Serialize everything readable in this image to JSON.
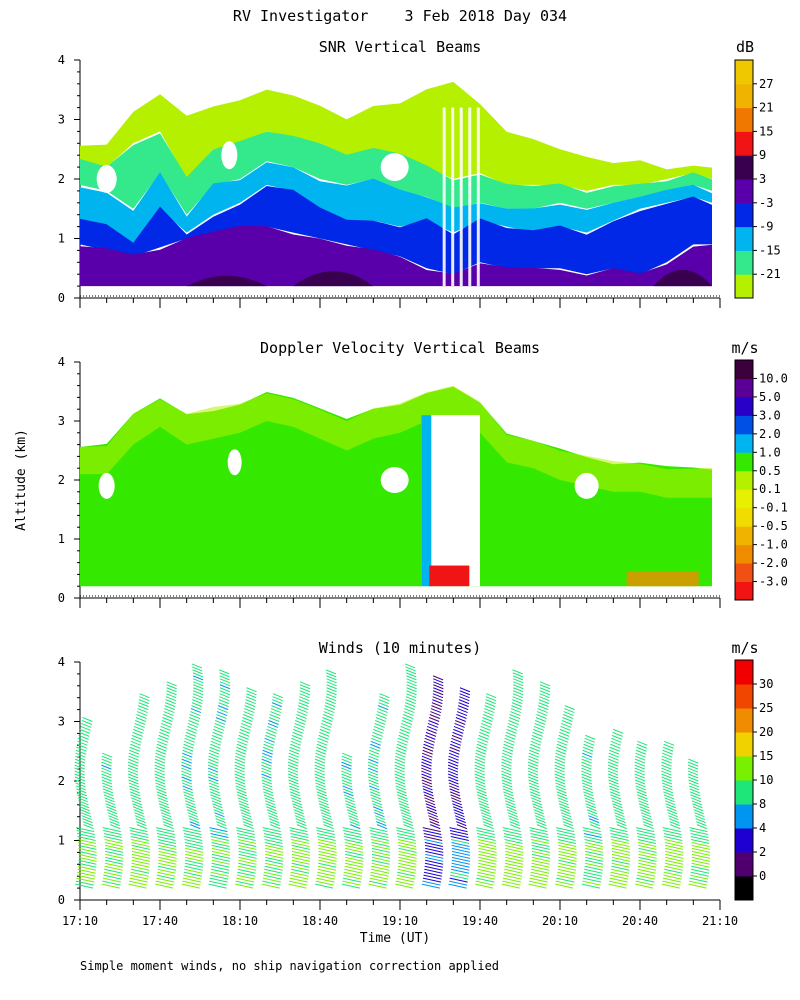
{
  "page": {
    "title": "RV Investigator    3 Feb 2018 Day 034",
    "ylabel": "Altitude (km)",
    "xlabel": "Time (UT)",
    "footnote": "Simple moment winds, no ship navigation correction applied"
  },
  "chart_data": [
    {
      "type": "heatmap",
      "title": "SNR Vertical Beams",
      "colorbar_title": "dB",
      "ylim": [
        0,
        4
      ],
      "yticks": [
        "0",
        "1",
        "2",
        "3",
        "4"
      ],
      "xlim": [
        0,
        240
      ],
      "levels": [
        "-21",
        "-15",
        "-9",
        "-3",
        "3",
        "9",
        "15",
        "21",
        "27"
      ],
      "colors": [
        "#b4f000",
        "#34e88c",
        "#00b4f0",
        "#0028e6",
        "#5a00aa",
        "#3a0050",
        "#f01414",
        "#f07800",
        "#f0b400",
        "#f0c800"
      ],
      "x_minutes": [
        0,
        10,
        20,
        30,
        40,
        50,
        60,
        70,
        80,
        90,
        100,
        110,
        120,
        130,
        140,
        150,
        160,
        170,
        180,
        190,
        200,
        210,
        220,
        230,
        237
      ],
      "layer_tops_km": {
        "level_3": [
          0.9,
          0.8,
          0.7,
          0.85,
          1.0,
          1.1,
          1.2,
          1.2,
          1.1,
          1.0,
          0.9,
          0.8,
          0.7,
          0.5,
          0.4,
          0.6,
          0.5,
          0.5,
          0.5,
          0.4,
          0.5,
          0.4,
          0.6,
          0.9,
          0.9
        ],
        "level_m3": [
          1.3,
          1.2,
          0.9,
          1.5,
          1.1,
          1.4,
          1.6,
          1.9,
          1.8,
          1.5,
          1.3,
          1.3,
          1.2,
          1.3,
          1.1,
          1.3,
          1.2,
          1.1,
          1.2,
          1.1,
          1.3,
          1.5,
          1.6,
          1.7,
          1.6
        ],
        "level_m9": [
          1.9,
          1.8,
          1.5,
          2.1,
          1.4,
          1.9,
          2.0,
          2.3,
          2.2,
          2.0,
          1.9,
          2.0,
          1.8,
          1.7,
          1.5,
          1.6,
          1.5,
          1.5,
          1.6,
          1.5,
          1.6,
          1.7,
          1.8,
          1.9,
          1.8
        ],
        "level_m15": [
          2.3,
          2.2,
          2.6,
          2.8,
          2.0,
          2.5,
          2.6,
          2.8,
          2.7,
          2.6,
          2.4,
          2.5,
          2.4,
          2.2,
          2.0,
          2.1,
          1.9,
          1.9,
          1.9,
          1.8,
          1.9,
          1.9,
          2.0,
          2.1,
          2.0
        ],
        "level_m21": [
          2.6,
          2.6,
          3.1,
          3.4,
          3.1,
          3.2,
          3.3,
          3.5,
          3.4,
          3.2,
          3.0,
          3.2,
          3.3,
          3.5,
          3.6,
          3.3,
          2.8,
          2.7,
          2.5,
          2.4,
          2.3,
          2.3,
          2.2,
          2.2,
          2.2
        ]
      }
    },
    {
      "type": "heatmap",
      "title": "Doppler Velocity Vertical Beams",
      "colorbar_title": "m/s",
      "ylim": [
        0,
        4
      ],
      "yticks": [
        "0",
        "1",
        "2",
        "3",
        "4"
      ],
      "xlim": [
        0,
        240
      ],
      "levels": [
        "-3.0",
        "-2.0",
        "-1.0",
        "-0.5",
        "-0.1",
        "0.1",
        "0.5",
        "1.0",
        "2.0",
        "3.0",
        "5.0",
        "10.0"
      ],
      "colors": [
        "#f01414",
        "#f05014",
        "#f08c00",
        "#f0b400",
        "#f0dc00",
        "#e6f000",
        "#b4f000",
        "#34e800",
        "#00b4f0",
        "#0050e6",
        "#2800c8",
        "#5a0096",
        "#3c003c"
      ],
      "x_minutes": [
        0,
        10,
        20,
        30,
        40,
        50,
        60,
        70,
        80,
        90,
        100,
        110,
        120,
        130,
        140,
        150,
        160,
        170,
        180,
        190,
        200,
        210,
        220,
        230,
        237
      ],
      "echo_top_km": [
        2.6,
        2.6,
        3.1,
        3.4,
        3.1,
        3.2,
        3.3,
        3.5,
        3.4,
        3.2,
        3.0,
        3.2,
        3.3,
        3.5,
        3.6,
        3.3,
        2.8,
        2.7,
        2.5,
        2.4,
        2.3,
        2.3,
        2.2,
        2.2,
        2.2
      ],
      "downdraft_window_minutes": [
        128,
        150
      ]
    },
    {
      "type": "scatter",
      "title": "Winds (10 minutes)",
      "colorbar_title": "m/s",
      "ylim": [
        0,
        4
      ],
      "yticks": [
        "0",
        "1",
        "2",
        "3",
        "4"
      ],
      "xlim": [
        0,
        240
      ],
      "xticks": [
        "17:10",
        "17:40",
        "18:10",
        "18:40",
        "19:10",
        "19:40",
        "20:10",
        "20:40",
        "21:10"
      ],
      "levels": [
        "0",
        "2",
        "4",
        "8",
        "10",
        "15",
        "20",
        "25",
        "30"
      ],
      "colors": [
        "#000000",
        "#50006e",
        "#1e00d2",
        "#0096f0",
        "#1ee678",
        "#78f000",
        "#f0d200",
        "#f08c00",
        "#f04600",
        "#f00000"
      ],
      "profile_times_minutes": [
        4,
        14,
        24,
        34,
        44,
        54,
        64,
        74,
        84,
        94,
        104,
        114,
        124,
        134,
        144,
        154,
        164,
        174,
        184,
        194,
        204,
        214,
        224,
        234
      ],
      "profile_tops_km": [
        3.0,
        2.4,
        3.4,
        3.6,
        3.9,
        3.8,
        3.5,
        3.4,
        3.6,
        3.8,
        2.4,
        3.4,
        3.9,
        3.7,
        3.5,
        3.4,
        3.8,
        3.6,
        3.2,
        2.7,
        2.8,
        2.6,
        2.6,
        2.3
      ],
      "profile_speeds_ms": [
        12,
        11,
        12,
        12,
        11,
        11,
        12,
        11,
        12,
        12,
        11,
        11,
        12,
        4,
        5,
        12,
        12,
        12,
        12,
        11,
        12,
        12,
        12,
        12
      ]
    }
  ]
}
